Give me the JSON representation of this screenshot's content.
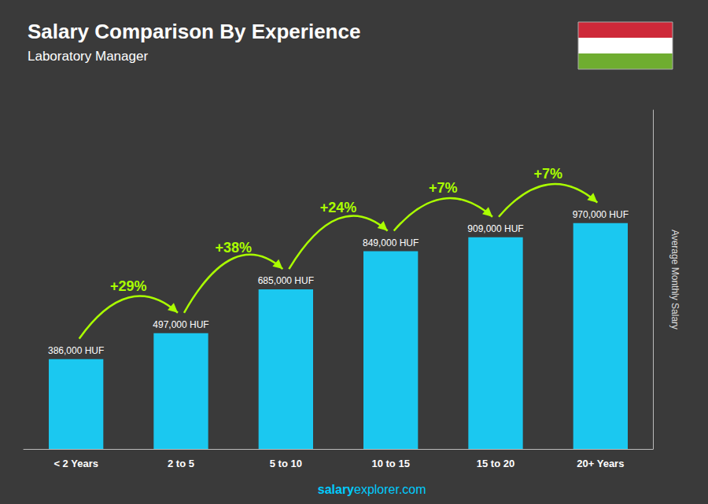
{
  "chart_data": {
    "type": "bar",
    "title": "Salary Comparison By Experience",
    "subtitle": "Laboratory Manager",
    "categories": [
      "< 2 Years",
      "2 to 5",
      "5 to 10",
      "10 to 15",
      "15 to 20",
      "20+ Years"
    ],
    "values": [
      386000,
      497000,
      685000,
      849000,
      909000,
      970000
    ],
    "value_labels": [
      "386,000 HUF",
      "497,000 HUF",
      "685,000 HUF",
      "849,000 HUF",
      "909,000 HUF",
      "970,000 HUF"
    ],
    "data_labels": true,
    "color": "#1BC8F0",
    "ylabel": "Average Monthly Salary",
    "ylim": [
      0,
      1455000
    ],
    "grid": false,
    "tick_labels": "x",
    "annotations": [
      "+29%",
      "+38%",
      "+24%",
      "+7%",
      "+7%"
    ],
    "watermark": [
      "salary",
      "explorer.com"
    ]
  }
}
